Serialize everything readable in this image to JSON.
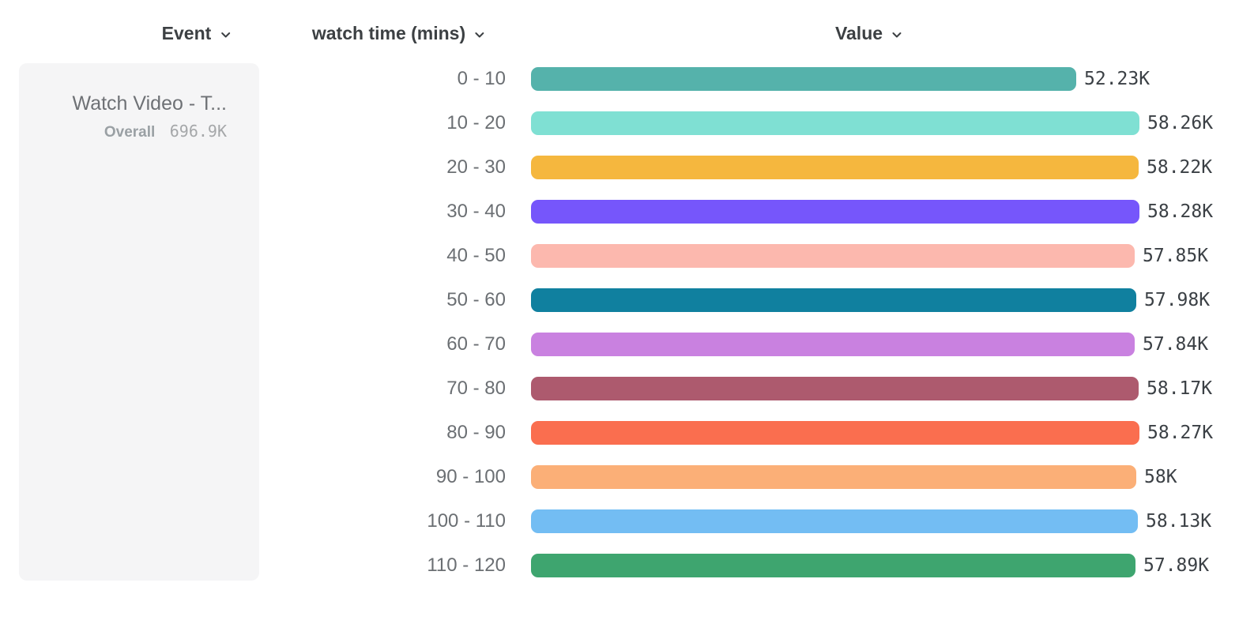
{
  "header": {
    "event": {
      "label": "Event"
    },
    "dimension": {
      "label": "watch time (mins)"
    },
    "value": {
      "label": "Value"
    }
  },
  "event_card": {
    "title": "Watch Video - T...",
    "overall_label": "Overall",
    "overall_value": "696.9K"
  },
  "chart_data": {
    "type": "bar",
    "orientation": "horizontal",
    "title": "",
    "xlabel": "Value",
    "ylabel": "watch time (mins)",
    "xlim": [
      0,
      58280
    ],
    "grid": false,
    "legend": false,
    "categories": [
      "0 - 10",
      "10 - 20",
      "20 - 30",
      "30 - 40",
      "40 - 50",
      "50 - 60",
      "60 - 70",
      "70 - 80",
      "80 - 90",
      "90 - 100",
      "100 - 110",
      "110 - 120"
    ],
    "values": [
      52230,
      58260,
      58220,
      58280,
      57850,
      57980,
      57840,
      58170,
      58270,
      58000,
      58130,
      57890
    ],
    "value_labels": [
      "52.23K",
      "58.26K",
      "58.22K",
      "58.28K",
      "57.85K",
      "57.98K",
      "57.84K",
      "58.17K",
      "58.27K",
      "58K",
      "58.13K",
      "57.89K"
    ],
    "bar_colors": [
      "#55b2ab",
      "#7fe0d3",
      "#f5b73e",
      "#7656fb",
      "#fcb8ae",
      "#10809f",
      "#c981e0",
      "#ad5a6e",
      "#fa6e4f",
      "#fbaf77",
      "#73bdf3",
      "#3ea56f"
    ]
  },
  "colors": {
    "header_text": "#3c4043",
    "category_text": "#6b6f73",
    "value_text": "#3b4045",
    "card_bg": "#f5f5f6",
    "card_title_text": "#6e7175",
    "card_overall_text": "#9aa0a4"
  }
}
